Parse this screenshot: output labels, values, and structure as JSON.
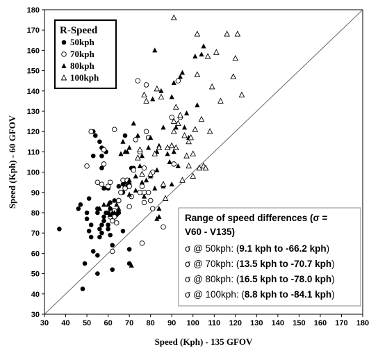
{
  "chart_data": {
    "type": "scatter",
    "xlabel": "Speed (Kph) - 135 GFOV",
    "ylabel": "Speed (Kph) - 60 GFOV",
    "xlim": [
      30,
      180
    ],
    "ylim": [
      30,
      180
    ],
    "x_ticks": [
      "30",
      "40",
      "50",
      "60",
      "70",
      "80",
      "90",
      "100",
      "110",
      "120",
      "130",
      "140",
      "150",
      "160",
      "170",
      "180"
    ],
    "y_ticks": [
      "30",
      "40",
      "50",
      "60",
      "70",
      "80",
      "90",
      "100",
      "110",
      "120",
      "130",
      "140",
      "150",
      "160",
      "170",
      "180"
    ],
    "grid": false,
    "reference_line": "y = x",
    "legend": {
      "title": "R-Speed",
      "position": "top-left",
      "entries": [
        {
          "label": "50kph",
          "marker": "filled-circle"
        },
        {
          "label": "70kph",
          "marker": "open-circle"
        },
        {
          "label": "80kph",
          "marker": "filled-triangle"
        },
        {
          "label": "100kph",
          "marker": "open-triangle"
        }
      ]
    },
    "annotation": {
      "title": "Range of speed differences (σ = V60 - V135)",
      "lines": [
        {
          "prefix": "σ @ 50kph: (",
          "range": "9.1 kph to -66.2 kph",
          "suffix": ")"
        },
        {
          "prefix": "σ @ 70kph: (",
          "range": "13.5 kph to -70.7 kph",
          "suffix": ")"
        },
        {
          "prefix": "σ @ 80kph: (",
          "range": "16.5 kph to -78.0 kph",
          "suffix": ")"
        },
        {
          "prefix": "σ @ 100kph: (",
          "range": "8.8 kph to -84.1 kph",
          "suffix": ")"
        }
      ]
    },
    "series": [
      {
        "name": "50kph",
        "marker": "filled-circle",
        "points": [
          [
            37,
            72
          ],
          [
            46,
            82
          ],
          [
            47,
            84
          ],
          [
            48,
            42.5
          ],
          [
            49,
            55
          ],
          [
            50,
            80
          ],
          [
            50,
            77
          ],
          [
            51,
            71
          ],
          [
            51,
            87
          ],
          [
            52,
            74
          ],
          [
            52,
            68
          ],
          [
            53,
            61
          ],
          [
            53,
            108
          ],
          [
            53,
            120
          ],
          [
            54,
            118
          ],
          [
            55,
            80
          ],
          [
            55,
            50
          ],
          [
            55,
            59
          ],
          [
            55,
            82
          ],
          [
            56,
            115
          ],
          [
            56,
            72
          ],
          [
            56,
            68
          ],
          [
            57,
            112
          ],
          [
            57,
            108
          ],
          [
            57,
            102
          ],
          [
            57,
            74
          ],
          [
            57,
            70
          ],
          [
            58,
            76
          ],
          [
            58,
            78
          ],
          [
            58,
            92
          ],
          [
            59,
            80
          ],
          [
            59,
            110
          ],
          [
            60,
            74
          ],
          [
            60,
            72
          ],
          [
            60,
            80
          ],
          [
            60,
            92
          ],
          [
            61,
            82
          ],
          [
            61,
            69
          ],
          [
            61,
            85
          ],
          [
            62,
            64
          ],
          [
            62,
            52
          ],
          [
            63,
            86
          ],
          [
            64,
            79
          ],
          [
            65,
            80
          ],
          [
            65,
            93
          ],
          [
            67,
            94
          ],
          [
            67,
            90
          ],
          [
            67,
            71
          ],
          [
            68,
            95
          ],
          [
            68,
            118
          ],
          [
            69,
            93
          ],
          [
            70,
            62
          ],
          [
            70,
            55
          ],
          [
            70,
            94
          ],
          [
            71,
            102
          ],
          [
            72,
            102
          ]
        ]
      },
      {
        "name": "70kph",
        "marker": "open-circle",
        "points": [
          [
            50,
            103
          ],
          [
            52,
            120
          ],
          [
            55,
            95
          ],
          [
            57,
            94
          ],
          [
            58,
            111
          ],
          [
            58,
            104
          ],
          [
            60,
            93
          ],
          [
            61,
            95
          ],
          [
            61,
            78
          ],
          [
            62,
            76
          ],
          [
            62,
            61
          ],
          [
            63,
            121
          ],
          [
            63,
            78
          ],
          [
            63,
            81
          ],
          [
            64,
            75
          ],
          [
            65,
            86
          ],
          [
            65,
            86
          ],
          [
            66,
            90
          ],
          [
            67,
            96
          ],
          [
            68,
            92
          ],
          [
            69,
            96
          ],
          [
            70,
            93
          ],
          [
            70,
            83
          ],
          [
            71,
            88
          ],
          [
            72,
            101
          ],
          [
            73,
            116
          ],
          [
            74,
            145
          ],
          [
            75,
            110
          ],
          [
            75,
            90
          ],
          [
            76,
            65
          ],
          [
            76,
            93
          ],
          [
            77,
            90
          ],
          [
            77,
            85
          ],
          [
            77,
            102
          ],
          [
            78,
            143
          ],
          [
            78,
            120
          ],
          [
            79,
            117
          ],
          [
            79,
            90
          ],
          [
            80,
            86
          ],
          [
            81,
            82
          ],
          [
            81,
            100
          ],
          [
            86,
            73
          ],
          [
            90,
            127
          ],
          [
            91,
            104
          ],
          [
            93,
            145
          ],
          [
            94,
            127
          ]
        ]
      },
      {
        "name": "80kph",
        "marker": "filled-triangle",
        "points": [
          [
            56,
            82
          ],
          [
            58,
            84
          ],
          [
            60,
            84
          ],
          [
            61,
            79
          ],
          [
            62,
            80
          ],
          [
            63,
            80
          ],
          [
            64,
            84
          ],
          [
            65,
            82
          ],
          [
            66,
            109
          ],
          [
            67,
            115
          ],
          [
            68,
            110
          ],
          [
            69,
            110
          ],
          [
            70,
            89
          ],
          [
            70,
            96
          ],
          [
            70,
            112
          ],
          [
            71,
            54
          ],
          [
            72,
            124
          ],
          [
            73,
            98
          ],
          [
            73,
            91
          ],
          [
            74,
            118
          ],
          [
            75,
            103
          ],
          [
            76,
            95
          ],
          [
            76,
            108
          ],
          [
            77,
            88
          ],
          [
            78,
            96
          ],
          [
            79,
            112
          ],
          [
            80,
            98
          ],
          [
            80,
            117
          ],
          [
            81,
            136
          ],
          [
            82,
            92
          ],
          [
            82,
            160
          ],
          [
            83,
            101
          ],
          [
            83,
            110
          ],
          [
            83,
            77
          ],
          [
            84,
            78
          ],
          [
            84,
            82
          ],
          [
            84,
            113
          ],
          [
            85,
            140
          ],
          [
            86,
            93
          ],
          [
            86,
            122
          ],
          [
            88,
            109
          ],
          [
            89,
            105
          ],
          [
            90,
            94
          ],
          [
            90,
            137
          ],
          [
            91,
            144
          ],
          [
            91,
            110
          ],
          [
            92,
            122
          ],
          [
            93,
            103
          ],
          [
            94,
            147
          ],
          [
            95,
            149
          ],
          [
            96,
            122
          ],
          [
            97,
            129
          ],
          [
            98,
            117
          ],
          [
            101,
            157
          ],
          [
            102,
            133
          ],
          [
            104,
            158
          ],
          [
            105,
            162
          ]
        ]
      },
      {
        "name": "100kph",
        "marker": "open-triangle",
        "points": [
          [
            74,
            107
          ],
          [
            75,
            111
          ],
          [
            76,
            99
          ],
          [
            77,
            138
          ],
          [
            78,
            135
          ],
          [
            80,
            99
          ],
          [
            82,
            109
          ],
          [
            83,
            141
          ],
          [
            84,
            112
          ],
          [
            85,
            137
          ],
          [
            86,
            94
          ],
          [
            87,
            87
          ],
          [
            88,
            112
          ],
          [
            90,
            113
          ],
          [
            91,
            176
          ],
          [
            91,
            120
          ],
          [
            91,
            125
          ],
          [
            92,
            112
          ],
          [
            92,
            132
          ],
          [
            93,
            124
          ],
          [
            94,
            128
          ],
          [
            95,
            96
          ],
          [
            96,
            118
          ],
          [
            97,
            108
          ],
          [
            98,
            103
          ],
          [
            98,
            115
          ],
          [
            99,
            117
          ],
          [
            100,
            98
          ],
          [
            100,
            109
          ],
          [
            101,
            121
          ],
          [
            102,
            148
          ],
          [
            102,
            168
          ],
          [
            103,
            102
          ],
          [
            104,
            126
          ],
          [
            105,
            103
          ],
          [
            106,
            102
          ],
          [
            107,
            157
          ],
          [
            108,
            120
          ],
          [
            109,
            142
          ],
          [
            111,
            159
          ],
          [
            113,
            135
          ],
          [
            116,
            168
          ],
          [
            119,
            147
          ],
          [
            120,
            156
          ],
          [
            121,
            168
          ],
          [
            123,
            138
          ]
        ]
      }
    ]
  }
}
